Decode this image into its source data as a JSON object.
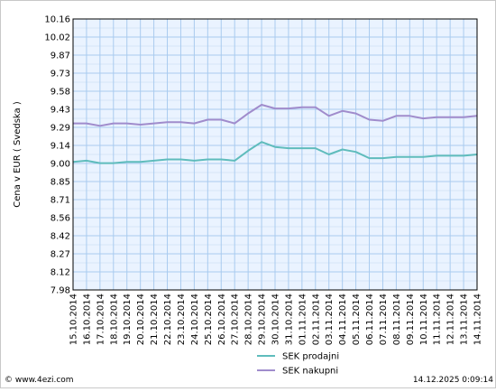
{
  "chart_data": {
    "type": "line",
    "ylabel": "Cena v EUR ( Svedska )",
    "ylim": [
      7.98,
      10.16
    ],
    "y_ticks": [
      "10.16",
      "10.02",
      "9.87",
      "9.73",
      "9.58",
      "9.43",
      "9.29",
      "9.14",
      "9.00",
      "8.85",
      "8.71",
      "8.56",
      "8.42",
      "8.27",
      "8.12",
      "7.98"
    ],
    "x": [
      "15.10.2014",
      "16.10.2014",
      "17.10.2014",
      "18.10.2014",
      "19.10.2014",
      "20.10.2014",
      "21.10.2014",
      "22.10.2014",
      "23.10.2014",
      "24.10.2014",
      "25.10.2014",
      "26.10.2014",
      "27.10.2014",
      "28.10.2014",
      "29.10.2014",
      "30.10.2014",
      "31.10.2014",
      "01.11.2014",
      "02.11.2014",
      "03.11.2014",
      "04.11.2014",
      "05.11.2014",
      "06.11.2014",
      "07.11.2014",
      "08.11.2014",
      "09.11.2014",
      "10.11.2014",
      "11.11.2014",
      "12.11.2014",
      "13.11.2014",
      "14.11.2014"
    ],
    "grid": true,
    "legend_position": "bottom-center",
    "series": [
      {
        "name": "SEK prodajni",
        "color": "#5fbcbc",
        "values": [
          9.01,
          9.02,
          9.0,
          9.0,
          9.01,
          9.01,
          9.02,
          9.03,
          9.03,
          9.02,
          9.03,
          9.03,
          9.02,
          9.1,
          9.17,
          9.13,
          9.12,
          9.12,
          9.12,
          9.07,
          9.11,
          9.09,
          9.04,
          9.04,
          9.05,
          9.05,
          9.05,
          9.06,
          9.06,
          9.06,
          9.07
        ]
      },
      {
        "name": "SEK nakupni",
        "color": "#a08ccc",
        "values": [
          9.32,
          9.32,
          9.3,
          9.32,
          9.32,
          9.31,
          9.32,
          9.33,
          9.33,
          9.32,
          9.35,
          9.35,
          9.32,
          9.4,
          9.47,
          9.44,
          9.44,
          9.45,
          9.45,
          9.38,
          9.42,
          9.4,
          9.35,
          9.34,
          9.38,
          9.38,
          9.36,
          9.37,
          9.37,
          9.37,
          9.38
        ]
      }
    ]
  },
  "footer": {
    "source": "© www.4ezi.com",
    "timestamp": "14.12.2025 0:09:14"
  }
}
